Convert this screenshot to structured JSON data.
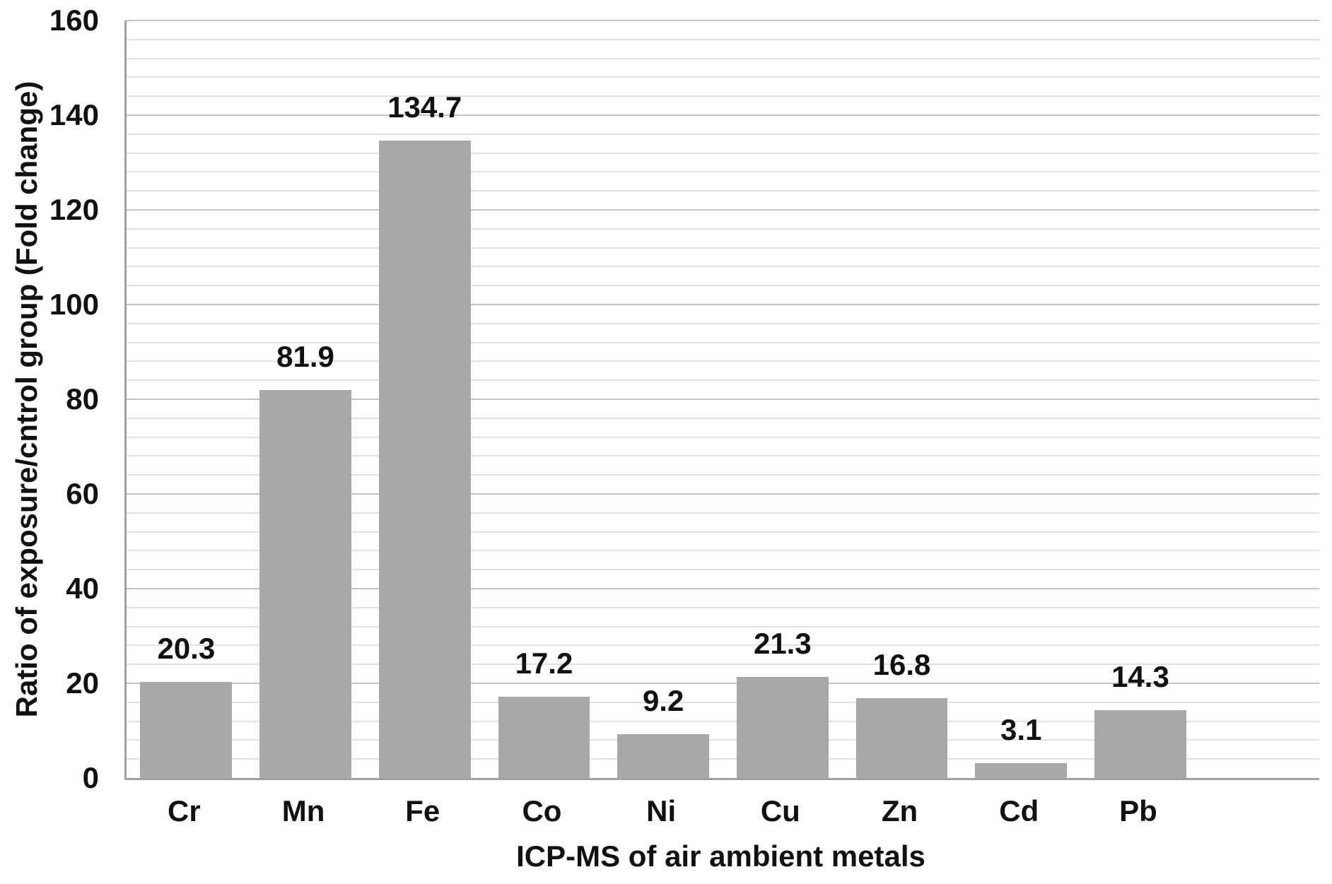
{
  "chart_data": {
    "type": "bar",
    "title": "",
    "categories": [
      "Cr",
      "Mn",
      "Fe",
      "Co",
      "Ni",
      "Cu",
      "Zn",
      "Cd",
      "Pb"
    ],
    "values": [
      20.3,
      81.9,
      134.7,
      17.2,
      9.2,
      21.3,
      16.8,
      3.1,
      14.3
    ],
    "data_labels": [
      "20.3",
      "81.9",
      "134.7",
      "17.2",
      "9.2",
      "21.3",
      "16.8",
      "3.1",
      "14.3"
    ],
    "xlabel": "ICP-MS of air ambient metals",
    "ylabel": "Ratio of exposure/cntrol group (Fold change)",
    "ylim": [
      0,
      160
    ],
    "y_major_ticks": [
      0,
      20,
      40,
      60,
      80,
      100,
      120,
      140,
      160
    ],
    "y_major_step": 20,
    "y_minor_step": 4,
    "grid": "horizontal, major and minor, on",
    "legend": "none",
    "bar_color": "#a8a8a8",
    "bar_gap_ratio": 0.3,
    "trailing_empty_slots": 1
  }
}
